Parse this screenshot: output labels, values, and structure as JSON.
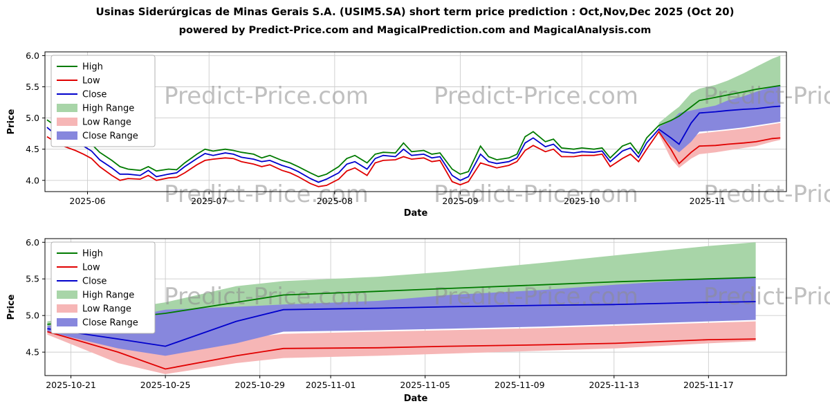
{
  "header": {
    "title": "Usinas Siderúrgicas de Minas Gerais S.A. (USIM5.SA) short term price prediction : Oct,Nov,Dec 2025 (Oct 20)",
    "subtitle": "powered by Predict-Price.com and MagicalPrediction.com and MagicalAnalysis.com"
  },
  "watermark": "Predict-Price.com",
  "colors": {
    "high": "#007a00",
    "low": "#e00000",
    "close": "#0000cc",
    "high_band": "#a8d5a8",
    "low_band": "#f6b6b6",
    "close_band": "#8787dd",
    "grid": "#cccccc",
    "watermark": "#8c8c8c"
  },
  "legend": [
    {
      "label": "High",
      "swatch": "line",
      "color": "#007a00"
    },
    {
      "label": "Low",
      "swatch": "line",
      "color": "#e00000"
    },
    {
      "label": "Close",
      "swatch": "line",
      "color": "#0000cc"
    },
    {
      "label": "High Range",
      "swatch": "patch",
      "color": "#a8d5a8"
    },
    {
      "label": "Low Range",
      "swatch": "patch",
      "color": "#f6b6b6"
    },
    {
      "label": "Close Range",
      "swatch": "patch",
      "color": "#8787dd"
    }
  ],
  "chart_data": {
    "type": "line",
    "x_axis": "date",
    "date_origin_day0": "2025-05-22",
    "history": {
      "days": [
        0,
        2,
        4,
        7,
        9,
        11,
        13,
        16,
        18,
        20,
        23,
        25,
        27,
        30,
        32,
        34,
        37,
        39,
        41,
        44,
        46,
        48,
        51,
        53,
        55,
        58,
        60,
        62,
        65,
        67,
        69,
        72,
        74,
        76,
        79,
        81,
        83,
        86,
        88,
        90,
        93,
        95,
        97,
        100,
        102,
        104,
        107,
        109,
        111,
        114,
        116,
        118,
        120,
        123,
        125,
        127,
        130,
        132,
        135,
        137,
        139,
        142,
        144,
        146,
        148,
        151
      ],
      "high": [
        4.97,
        4.88,
        4.8,
        4.72,
        4.65,
        4.58,
        4.45,
        4.32,
        4.22,
        4.18,
        4.16,
        4.22,
        4.15,
        4.18,
        4.17,
        4.28,
        4.42,
        4.5,
        4.47,
        4.5,
        4.48,
        4.45,
        4.42,
        4.36,
        4.4,
        4.32,
        4.28,
        4.22,
        4.12,
        4.06,
        4.1,
        4.22,
        4.35,
        4.4,
        4.28,
        4.42,
        4.45,
        4.44,
        4.6,
        4.46,
        4.48,
        4.42,
        4.44,
        4.18,
        4.1,
        4.14,
        4.55,
        4.38,
        4.33,
        4.36,
        4.42,
        4.7,
        4.78,
        4.62,
        4.66,
        4.52,
        4.5,
        4.52,
        4.5,
        4.52,
        4.36,
        4.55,
        4.6,
        4.43,
        4.68,
        4.88
      ],
      "low": [
        4.7,
        4.62,
        4.55,
        4.48,
        4.42,
        4.35,
        4.22,
        4.08,
        4.0,
        4.03,
        4.02,
        4.08,
        4.0,
        4.04,
        4.05,
        4.12,
        4.25,
        4.32,
        4.34,
        4.36,
        4.35,
        4.3,
        4.26,
        4.22,
        4.25,
        4.16,
        4.12,
        4.06,
        3.95,
        3.9,
        3.92,
        4.02,
        4.15,
        4.2,
        4.08,
        4.28,
        4.32,
        4.33,
        4.38,
        4.34,
        4.36,
        4.3,
        4.32,
        3.98,
        3.93,
        3.98,
        4.28,
        4.24,
        4.2,
        4.24,
        4.3,
        4.48,
        4.56,
        4.46,
        4.5,
        4.38,
        4.38,
        4.4,
        4.4,
        4.42,
        4.22,
        4.35,
        4.42,
        4.3,
        4.5,
        4.78
      ],
      "close": [
        4.85,
        4.74,
        4.66,
        4.6,
        4.55,
        4.47,
        4.33,
        4.2,
        4.1,
        4.1,
        4.08,
        4.16,
        4.06,
        4.1,
        4.12,
        4.22,
        4.35,
        4.43,
        4.4,
        4.44,
        4.42,
        4.37,
        4.34,
        4.3,
        4.32,
        4.24,
        4.2,
        4.14,
        4.03,
        3.97,
        4.02,
        4.12,
        4.26,
        4.3,
        4.18,
        4.35,
        4.4,
        4.38,
        4.5,
        4.4,
        4.42,
        4.36,
        4.38,
        4.08,
        4.0,
        4.06,
        4.42,
        4.3,
        4.27,
        4.3,
        4.36,
        4.6,
        4.68,
        4.54,
        4.58,
        4.46,
        4.44,
        4.46,
        4.45,
        4.47,
        4.3,
        4.47,
        4.52,
        4.37,
        4.6,
        4.82
      ]
    },
    "prediction": {
      "days": [
        151,
        154,
        156,
        159,
        161,
        165,
        168,
        172,
        175,
        179,
        181
      ],
      "high": [
        4.88,
        4.96,
        5.03,
        5.18,
        5.28,
        5.33,
        5.37,
        5.42,
        5.46,
        5.5,
        5.52
      ],
      "low": [
        4.78,
        4.5,
        4.27,
        4.45,
        4.55,
        4.56,
        4.58,
        4.6,
        4.62,
        4.67,
        4.68
      ],
      "close": [
        4.82,
        4.68,
        4.58,
        4.92,
        5.08,
        5.1,
        5.12,
        5.14,
        5.15,
        5.18,
        5.19
      ],
      "high_range": [
        [
          4.85,
          4.92
        ],
        [
          4.88,
          5.08
        ],
        [
          4.92,
          5.18
        ],
        [
          4.98,
          5.4
        ],
        [
          5.02,
          5.47
        ],
        [
          5.04,
          5.53
        ],
        [
          5.07,
          5.6
        ],
        [
          5.1,
          5.72
        ],
        [
          5.14,
          5.82
        ],
        [
          5.18,
          5.95
        ],
        [
          5.2,
          6.0
        ]
      ],
      "low_range": [
        [
          4.74,
          4.82
        ],
        [
          4.35,
          4.62
        ],
        [
          4.2,
          4.55
        ],
        [
          4.35,
          4.68
        ],
        [
          4.42,
          4.75
        ],
        [
          4.45,
          4.78
        ],
        [
          4.48,
          4.8
        ],
        [
          4.52,
          4.83
        ],
        [
          4.55,
          4.86
        ],
        [
          4.62,
          4.9
        ],
        [
          4.65,
          4.92
        ]
      ],
      "close_range": [
        [
          4.78,
          4.86
        ],
        [
          4.55,
          4.95
        ],
        [
          4.45,
          5.08
        ],
        [
          4.62,
          5.12
        ],
        [
          4.78,
          5.15
        ],
        [
          4.8,
          5.2
        ],
        [
          4.82,
          5.28
        ],
        [
          4.85,
          5.35
        ],
        [
          4.88,
          5.42
        ],
        [
          4.92,
          5.5
        ],
        [
          4.94,
          5.52
        ]
      ]
    },
    "charts": [
      {
        "name": "main",
        "include_history": true,
        "ylabel": "Price",
        "xlabel": "Date",
        "ylim": [
          3.82,
          6.06
        ],
        "yticks": [
          4.0,
          4.5,
          5.0,
          5.5,
          6.0
        ],
        "xlim": [
          -0.5,
          182.5
        ],
        "xticks": [
          {
            "d": 10,
            "label": "2025-06"
          },
          {
            "d": 40,
            "label": "2025-07"
          },
          {
            "d": 71,
            "label": "2025-08"
          },
          {
            "d": 102,
            "label": "2025-09"
          },
          {
            "d": 132,
            "label": "2025-10"
          },
          {
            "d": 163,
            "label": "2025-11"
          }
        ]
      },
      {
        "name": "forecast",
        "include_history": false,
        "ylabel": "Price",
        "xlabel": "Date",
        "ylim": [
          4.18,
          6.05
        ],
        "yticks": [
          4.5,
          5.0,
          5.5,
          6.0
        ],
        "xlim": [
          150.9,
          182.3
        ],
        "xticks": [
          {
            "d": 152,
            "label": "2025-10-21"
          },
          {
            "d": 156,
            "label": "2025-10-25"
          },
          {
            "d": 160,
            "label": "2025-10-29"
          },
          {
            "d": 163,
            "label": "2025-11-01"
          },
          {
            "d": 167,
            "label": "2025-11-05"
          },
          {
            "d": 171,
            "label": "2025-11-09"
          },
          {
            "d": 175,
            "label": "2025-11-13"
          },
          {
            "d": 179,
            "label": "2025-11-17"
          }
        ]
      }
    ]
  }
}
